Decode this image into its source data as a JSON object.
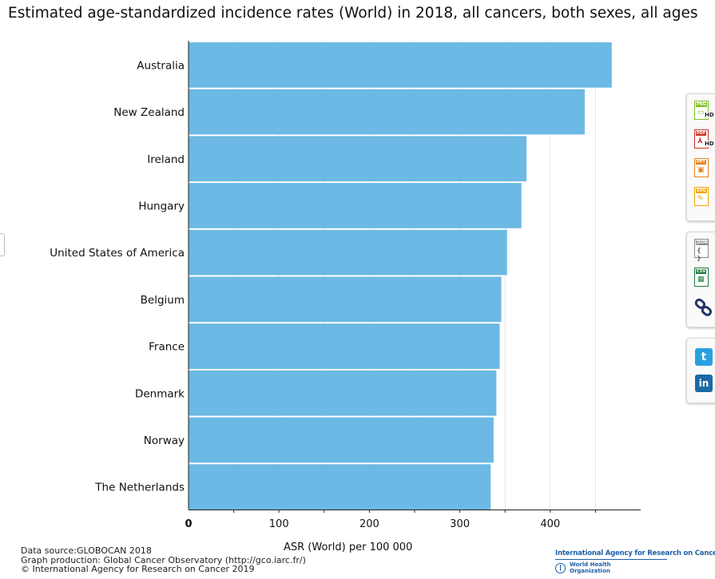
{
  "title": "Estimated age-standardized incidence rates (World) in 2018, all cancers, both sexes, all ages",
  "footer": {
    "line1": "Data source:GLOBOCAN 2018",
    "line2": "Graph production: Global Cancer Observatory (http://gco.iarc.fr/)",
    "line3": "© International Agency for Research on Cancer 2019"
  },
  "logo": {
    "agency": "International Agency for Research on Cancer",
    "who_line1": "World Health",
    "who_line2": "Organization"
  },
  "toolbar": {
    "png_tag": "PNG",
    "pdf_tag": "PDF",
    "ppt_tag": "PPT",
    "svg_tag": "SVG",
    "json_tag": "JSON",
    "csv_tag": "CSV",
    "hd_label": "HD",
    "json_glyph": "{ }",
    "twitter_glyph": "t",
    "linkedin_glyph": "in"
  },
  "icons": {
    "png": "png-download-icon",
    "pdf": "pdf-download-icon",
    "ppt": "ppt-download-icon",
    "svg": "svg-download-icon",
    "json": "json-download-icon",
    "csv": "csv-download-icon",
    "link": "link-icon",
    "twitter": "twitter-icon",
    "linkedin": "linkedin-icon"
  },
  "colors": {
    "bar": "#6bb9e4",
    "png": "#7cbf1e",
    "pdf": "#d0302a",
    "ppt": "#e8801a",
    "svg": "#f0a300",
    "json": "#888888",
    "csv": "#1e7a3c",
    "link": "#24346b",
    "twitter": "#2aa0e0",
    "linkedin": "#1a6aa5"
  },
  "chart_data": {
    "type": "bar",
    "orientation": "horizontal",
    "title": "Estimated age-standardized incidence rates (World) in 2018, all cancers, both sexes, all ages",
    "xlabel": "ASR (World) per 100 000",
    "ylabel": "",
    "categories": [
      "Australia",
      "New Zealand",
      "Ireland",
      "Hungary",
      "United States of America",
      "Belgium",
      "France",
      "Denmark",
      "Norway",
      "The Netherlands"
    ],
    "values": [
      468.0,
      438.1,
      373.7,
      368.1,
      352.2,
      345.8,
      344.1,
      340.4,
      337.3,
      334.1
    ],
    "xticks": [
      0,
      100,
      200,
      300,
      400
    ],
    "xlim": [
      0,
      500
    ],
    "grid": "vertical",
    "legend": "none"
  }
}
